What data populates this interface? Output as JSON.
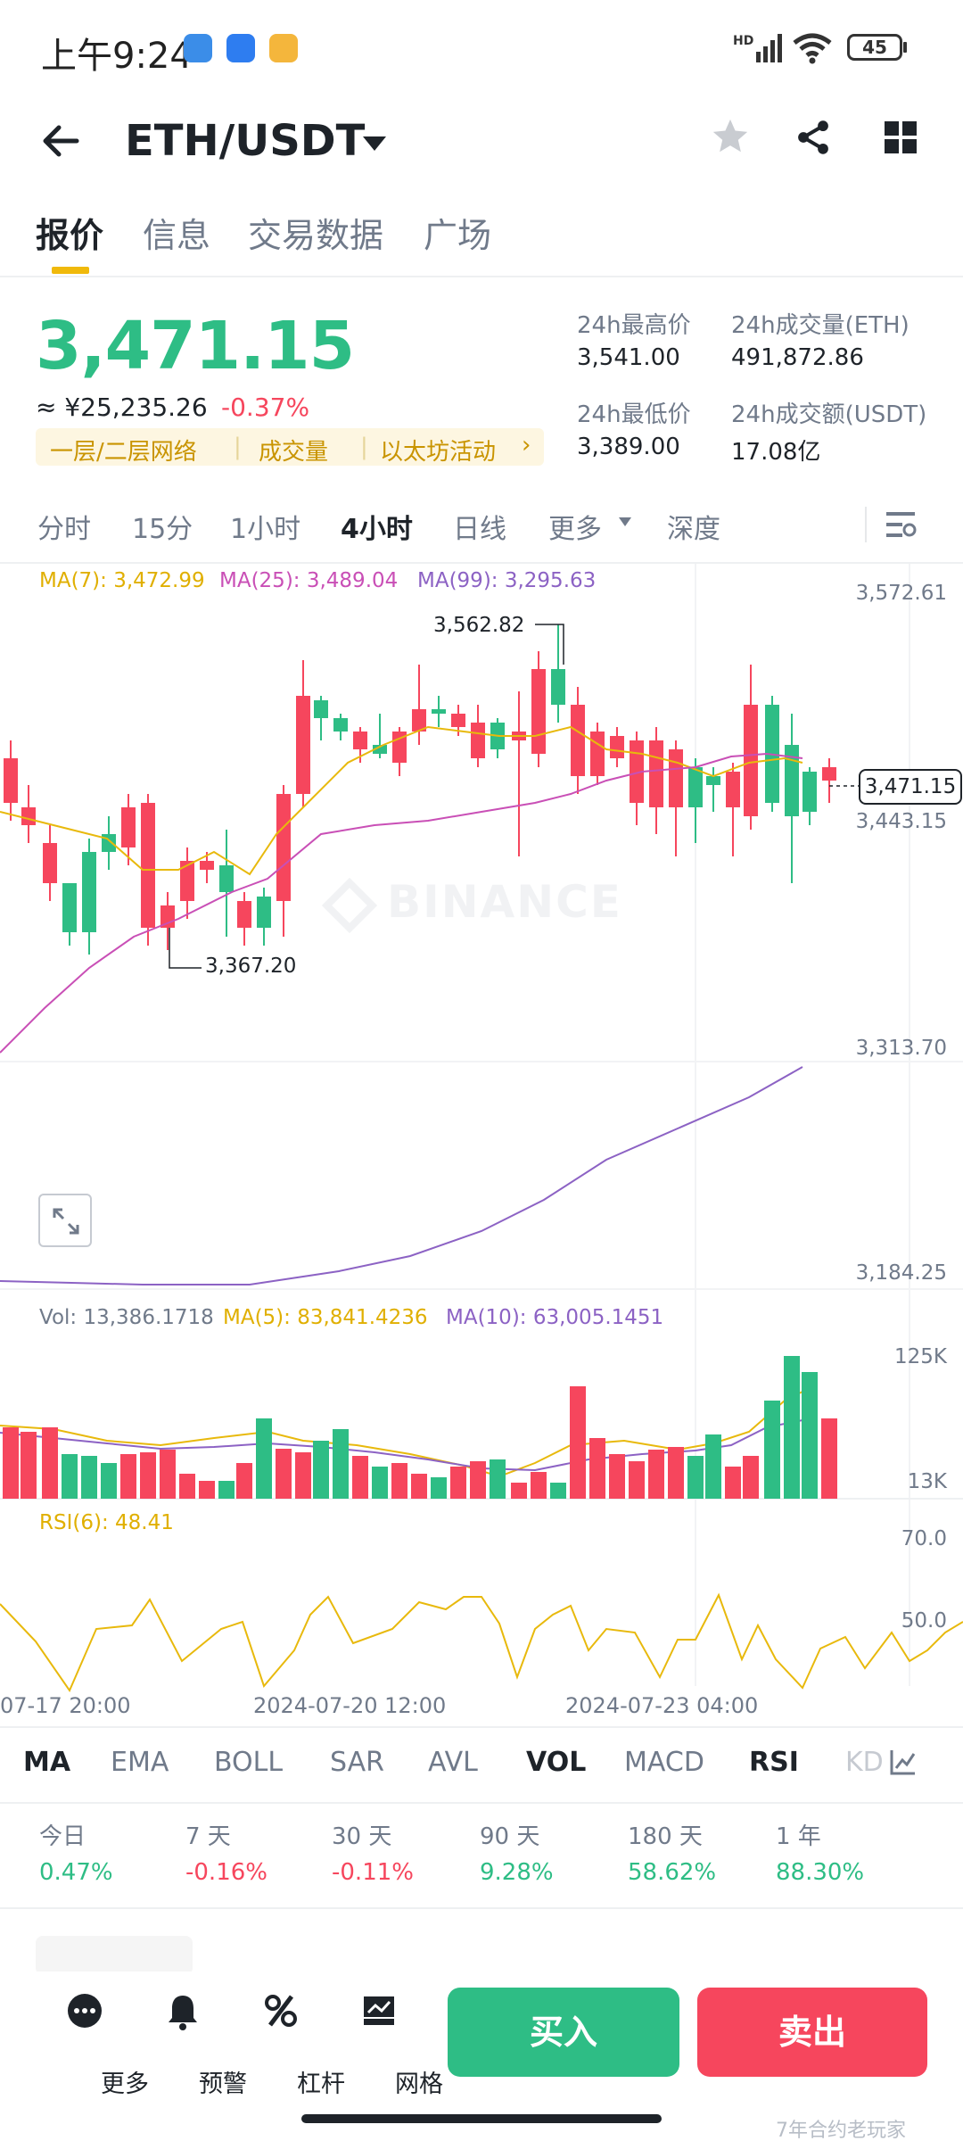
{
  "status_bar": {
    "time": "上午9:24",
    "battery": "45"
  },
  "header": {
    "pair": "ETH/USDT"
  },
  "tabs": [
    "报价",
    "信息",
    "交易数据",
    "广场"
  ],
  "ticker": {
    "price": "3,471.15",
    "cny": "≈ ¥25,235.26",
    "change": "-0.37%",
    "tags": [
      "一层/二层网络",
      "成交量",
      "以太坊活动"
    ],
    "high_label": "24h最高价",
    "high": "3,541.00",
    "low_label": "24h最低价",
    "low": "3,389.00",
    "vol_eth_label": "24h成交量(ETH)",
    "vol_eth": "491,872.86",
    "vol_usdt_label": "24h成交额(USDT)",
    "vol_usdt": "17.08亿"
  },
  "intervals": [
    "分时",
    "15分",
    "1小时",
    "4小时",
    "日线",
    "更多",
    "深度"
  ],
  "ma": {
    "ma7": "MA(7): 3,472.99",
    "ma25": "MA(25): 3,489.04",
    "ma99": "MA(99): 3,295.63"
  },
  "price_axis": {
    "top": "3,572.61",
    "mid": "3,443.15",
    "lower": "3,313.70",
    "bottom": "3,184.25"
  },
  "annotations": {
    "high": "3,562.82",
    "low": "3,367.20",
    "current": "3,471.15"
  },
  "watermark": "BINANCE",
  "volume": {
    "vol": "Vol: 13,386.1718",
    "ma5": "MA(5): 83,841.4236",
    "ma10": "MA(10): 63,005.1451",
    "axis_top": "125K",
    "axis_bottom": "13K"
  },
  "rsi": {
    "label": "RSI(6): 48.41",
    "axis_top": "70.0",
    "axis_mid": "50.0"
  },
  "time_axis": [
    "07-17 20:00",
    "2024-07-20 12:00",
    "2024-07-23 04:00"
  ],
  "indicators": [
    "MA",
    "EMA",
    "BOLL",
    "SAR",
    "AVL",
    "VOL",
    "MACD",
    "RSI",
    "KD"
  ],
  "performance": [
    {
      "label": "今日",
      "value": "0.47%"
    },
    {
      "label": "7 天",
      "value": "-0.16%"
    },
    {
      "label": "30 天",
      "value": "-0.11%"
    },
    {
      "label": "90 天",
      "value": "9.28%"
    },
    {
      "label": "180 天",
      "value": "58.62%"
    },
    {
      "label": "1 年",
      "value": "88.30%"
    }
  ],
  "bottom_nav": [
    "更多",
    "预警",
    "杠杆",
    "网格"
  ],
  "buy": "买入",
  "sell": "卖出",
  "watermark_corner": "7年合约老玩家",
  "colors": {
    "up": "#2ebd85",
    "down": "#f6465d",
    "ma7": "#e8b90c",
    "ma25": "#c94fb6",
    "ma99": "#8c62c4",
    "accent": "#f0b90b"
  }
}
